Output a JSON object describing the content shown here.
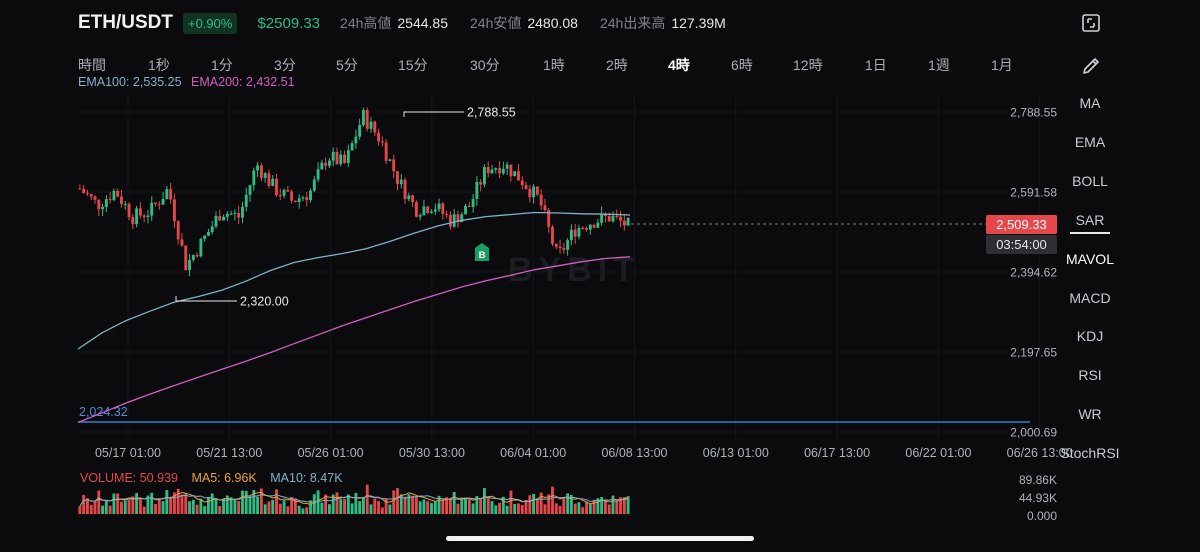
{
  "header": {
    "symbol": "ETH/USDT",
    "change": "+0.90%",
    "last_price": "$2509.33",
    "high_label": "24h高値",
    "high_value": "2544.85",
    "low_label": "24h安値",
    "low_value": "2480.08",
    "volume_label": "24h出来高",
    "volume_value": "127.39M"
  },
  "icons": {
    "fullscreen": "fullscreen-icon",
    "draw": "pencil-icon"
  },
  "timeframes": [
    "時間",
    "1秒",
    "1分",
    "3分",
    "5分",
    "15分",
    "30分",
    "1時",
    "2時",
    "4時",
    "6時",
    "12時",
    "1日",
    "1週",
    "1月"
  ],
  "active_timeframe": "4時",
  "ema_legend": {
    "ema100": "EMA100: 2,535.25",
    "ema200": "EMA200: 2,432.51"
  },
  "indicators": [
    "MA",
    "EMA",
    "BOLL",
    "SAR",
    "MAVOL",
    "MACD",
    "KDJ",
    "RSI",
    "WR",
    "StochRSI"
  ],
  "active_indicator": "MAVOL",
  "price_tag": {
    "value": "2,509.33",
    "countdown": "03:54:00"
  },
  "line_label": "2,024.32",
  "marker_label": "B",
  "watermark": "BYBIT",
  "volume_legend": {
    "volume": "VOLUME: 50.939",
    "ma5": "MA5: 6.96K",
    "ma10": "MA10: 8.47K"
  },
  "volume_axis": [
    "89.86K",
    "44.93K",
    "0.000"
  ],
  "colors": {
    "up": "#2ebd85",
    "down": "#e5474b",
    "ema100": "#7fb2c8",
    "ema200": "#d05fc1",
    "hline": "#2e7fd1",
    "ma5": "#e8a33b",
    "background": "#0b0b0e"
  },
  "chart_data": {
    "type": "line",
    "y_ticks": [
      "2,788.55",
      "2,591.58",
      "2,394.62",
      "2,197.65",
      "2,000.69"
    ],
    "ylim": [
      2000.69,
      2788.55
    ],
    "x_ticks": [
      "05/17 01:00",
      "05/21 13:00",
      "05/26 01:00",
      "05/30 13:00",
      "06/04 01:00",
      "06/08 13:00",
      "06/13 01:00",
      "06/17 13:00",
      "06/22 01:00",
      "06/26 13:00"
    ],
    "annotations": {
      "high": "2,788.55",
      "low": "2,320.00"
    },
    "horizontal_line": 2024.32,
    "last_price": 2509.33,
    "series": [
      {
        "name": "EMA100",
        "values": [
          2205,
          2245,
          2275,
          2298,
          2320,
          2334,
          2350,
          2372,
          2398,
          2418,
          2430,
          2440,
          2452,
          2470,
          2490,
          2508,
          2522,
          2531,
          2536,
          2541,
          2540,
          2538,
          2537,
          2535
        ]
      },
      {
        "name": "EMA200",
        "values": [
          2024,
          2048,
          2072,
          2094,
          2115,
          2135,
          2155,
          2175,
          2196,
          2218,
          2240,
          2262,
          2282,
          2302,
          2322,
          2340,
          2358,
          2373,
          2386,
          2400,
          2410,
          2420,
          2428,
          2432
        ]
      },
      {
        "name": "Price",
        "values": [
          2600,
          2560,
          2595,
          2530,
          2545,
          2600,
          2410,
          2475,
          2545,
          2530,
          2660,
          2600,
          2570,
          2590,
          2680,
          2660,
          2780,
          2720,
          2620,
          2550,
          2560,
          2520,
          2555,
          2650,
          2660,
          2620,
          2570,
          2430,
          2500,
          2520,
          2530,
          2509
        ]
      }
    ]
  }
}
